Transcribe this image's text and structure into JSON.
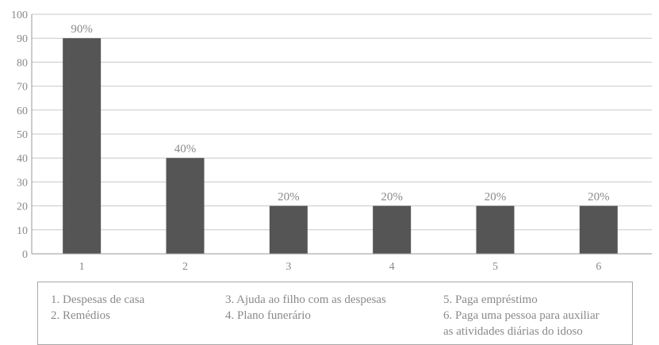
{
  "chart_data": {
    "type": "bar",
    "categories": [
      "1",
      "2",
      "3",
      "4",
      "5",
      "6"
    ],
    "values": [
      90,
      40,
      20,
      20,
      20,
      20
    ],
    "data_labels": [
      "90%",
      "40%",
      "20%",
      "20%",
      "20%",
      "20%"
    ],
    "yticks": [
      "0",
      "10",
      "20",
      "30",
      "40",
      "50",
      "60",
      "70",
      "80",
      "90",
      "100"
    ],
    "ylim": [
      0,
      100
    ],
    "grid": true,
    "bar_color": "#555555",
    "grid_color": "#c8c8c8"
  },
  "legend": {
    "col1": [
      "1. Despesas de casa",
      "2. Remédios"
    ],
    "col2": [
      "3. Ajuda ao filho com as despesas",
      "4. Plano funerário"
    ],
    "col3": [
      "5. Paga empréstimo",
      "6. Paga uma pessoa para auxiliar",
      "as atividades diárias do idoso"
    ]
  }
}
